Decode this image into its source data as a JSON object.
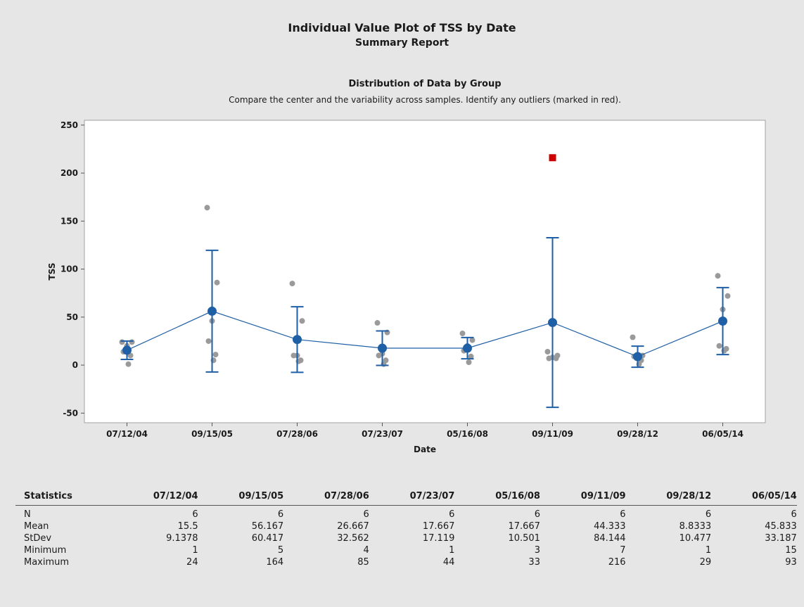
{
  "report": {
    "title": "Individual Value Plot of TSS by Date",
    "subtitle": "Summary Report",
    "section_title": "Distribution of Data by Group",
    "section_desc": "Compare the center and the variability across samples. Identify any outliers (marked in red)."
  },
  "colors": {
    "background": "#e6e6e6",
    "plot_bg": "#ffffff",
    "points": "#9a9a9a",
    "mean_line": "#1f5fa6",
    "outlier": "#cc0000"
  },
  "chart_data": {
    "type": "scatter",
    "xlabel": "Date",
    "ylabel": "TSS",
    "ylim": [
      -60,
      255
    ],
    "yticks": [
      -50,
      0,
      50,
      100,
      150,
      200,
      250
    ],
    "categories": [
      "07/12/04",
      "09/15/05",
      "07/28/06",
      "07/23/07",
      "05/16/08",
      "09/11/09",
      "09/28/12",
      "06/05/14"
    ],
    "points": [
      [
        24,
        24,
        20,
        14,
        10,
        1
      ],
      [
        164,
        86,
        46,
        25,
        11,
        5
      ],
      [
        85,
        46,
        10,
        10,
        5,
        4
      ],
      [
        44,
        34,
        12,
        10,
        5,
        1
      ],
      [
        33,
        26,
        20,
        15,
        9,
        3
      ],
      [
        14,
        10,
        8,
        7,
        7
      ],
      [
        29,
        10,
        9,
        9,
        5,
        1
      ],
      [
        93,
        72,
        58,
        20,
        17,
        15
      ]
    ],
    "outliers": [
      {
        "category": "09/11/09",
        "value": 216
      }
    ],
    "means": [
      15.5,
      56.167,
      26.667,
      17.667,
      17.667,
      44.333,
      8.8333,
      45.833
    ],
    "intervals": [
      [
        5.9,
        25.1
      ],
      [
        -7.2,
        119.6
      ],
      [
        -7.5,
        60.8
      ],
      [
        -0.3,
        35.6
      ],
      [
        6.6,
        28.7
      ],
      [
        -44.0,
        132.7
      ],
      [
        -2.2,
        19.8
      ],
      [
        11.0,
        80.7
      ]
    ],
    "grid": false,
    "legend": "none"
  },
  "stats": {
    "header_label": "Statistics",
    "columns": [
      "07/12/04",
      "09/15/05",
      "07/28/06",
      "07/23/07",
      "05/16/08",
      "09/11/09",
      "09/28/12",
      "06/05/14"
    ],
    "rows": [
      {
        "label": "N",
        "values": [
          "6",
          "6",
          "6",
          "6",
          "6",
          "6",
          "6",
          "6"
        ]
      },
      {
        "label": "Mean",
        "values": [
          "15.5",
          "56.167",
          "26.667",
          "17.667",
          "17.667",
          "44.333",
          "8.8333",
          "45.833"
        ]
      },
      {
        "label": "StDev",
        "values": [
          "9.1378",
          "60.417",
          "32.562",
          "17.119",
          "10.501",
          "84.144",
          "10.477",
          "33.187"
        ]
      },
      {
        "label": "Minimum",
        "values": [
          "1",
          "5",
          "4",
          "1",
          "3",
          "7",
          "1",
          "15"
        ]
      },
      {
        "label": "Maximum",
        "values": [
          "24",
          "164",
          "85",
          "44",
          "33",
          "216",
          "29",
          "93"
        ]
      }
    ]
  }
}
